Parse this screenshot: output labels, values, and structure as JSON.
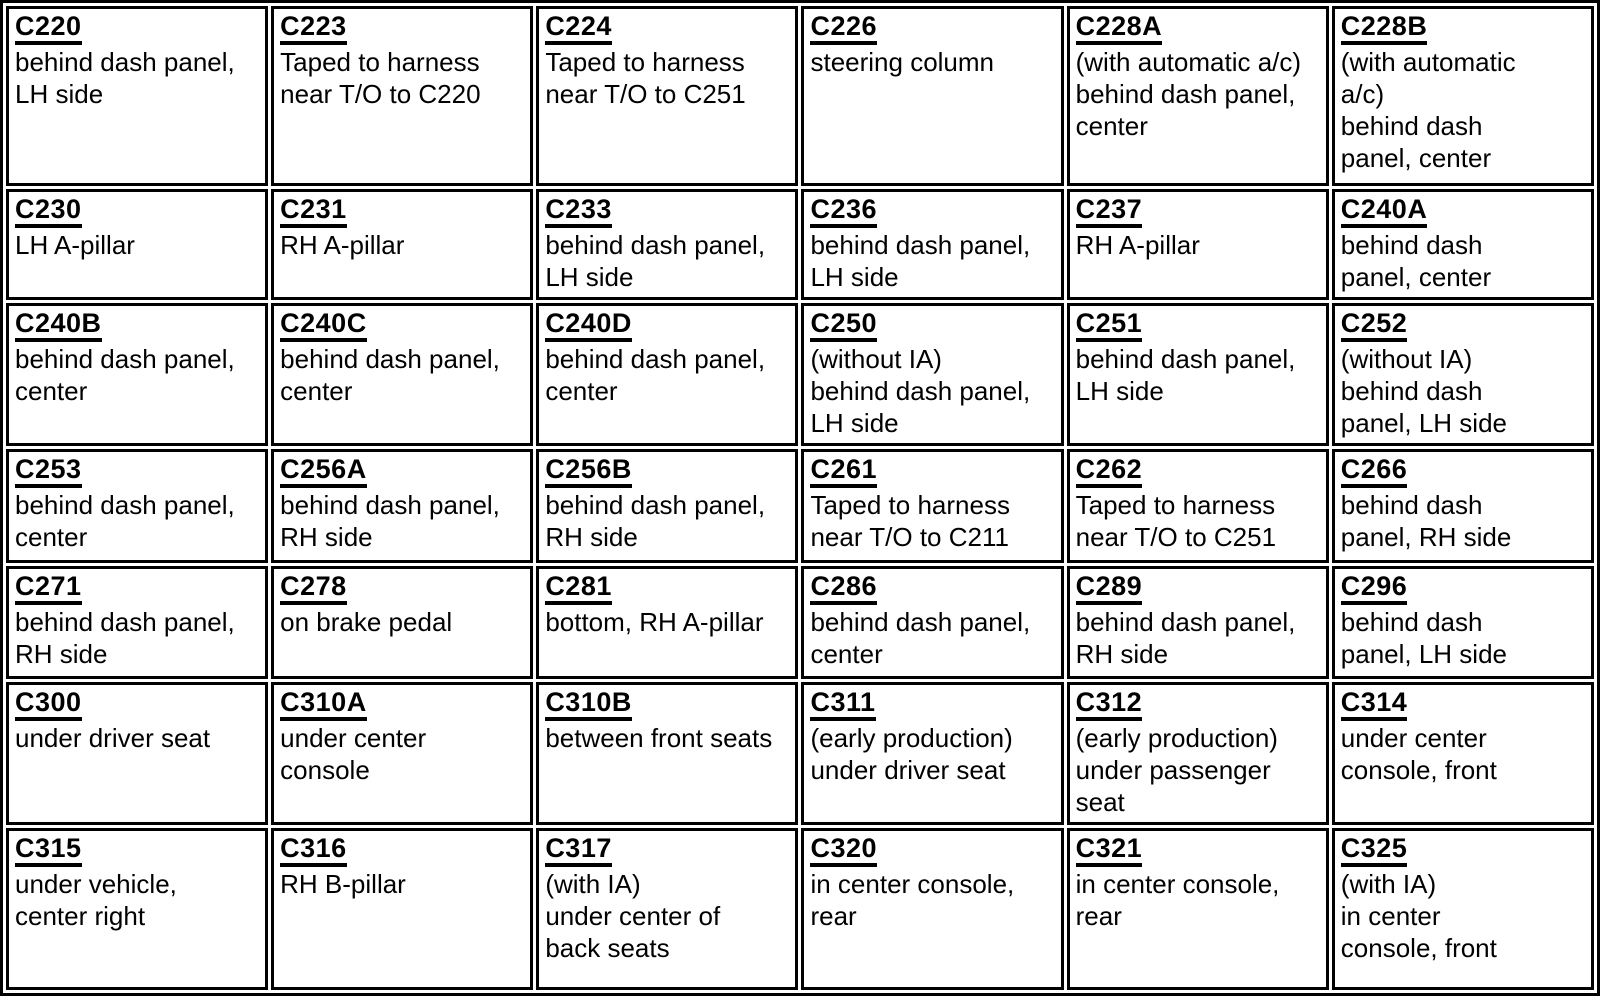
{
  "colors": {
    "text": "#000000",
    "border": "#000000",
    "background": "#ffffff"
  },
  "table": {
    "description": "connector-location-table",
    "columns": 6,
    "rows": [
      [
        {
          "code": "C220",
          "location": [
            "behind dash panel,",
            "LH side"
          ]
        },
        {
          "code": "C223",
          "location": [
            "Taped to harness",
            "near T/O to C220"
          ]
        },
        {
          "code": "C224",
          "location": [
            "Taped to harness",
            "near T/O to C251"
          ]
        },
        {
          "code": "C226",
          "location": [
            "steering column"
          ]
        },
        {
          "code": "C228A",
          "location": [
            "(with automatic a/c)",
            "behind dash panel,",
            "center"
          ]
        },
        {
          "code": "C228B",
          "location": [
            "(with automatic",
            "a/c)",
            "behind dash",
            "panel, center"
          ]
        }
      ],
      [
        {
          "code": "C230",
          "location": [
            "LH A-pillar"
          ]
        },
        {
          "code": "C231",
          "location": [
            "RH A-pillar"
          ]
        },
        {
          "code": "C233",
          "location": [
            "behind dash panel,",
            "LH side"
          ]
        },
        {
          "code": "C236",
          "location": [
            "behind dash panel,",
            "LH side"
          ]
        },
        {
          "code": "C237",
          "location": [
            "RH A-pillar"
          ]
        },
        {
          "code": "C240A",
          "location": [
            "behind dash",
            "panel, center"
          ]
        }
      ],
      [
        {
          "code": "C240B",
          "location": [
            "behind dash panel,",
            "center"
          ]
        },
        {
          "code": "C240C",
          "location": [
            "behind dash panel,",
            "center"
          ]
        },
        {
          "code": "C240D",
          "location": [
            "behind dash panel,",
            "center"
          ]
        },
        {
          "code": "C250",
          "location": [
            "(without IA)",
            "behind dash panel,",
            "LH side"
          ]
        },
        {
          "code": "C251",
          "location": [
            "behind dash panel,",
            "LH side"
          ]
        },
        {
          "code": "C252",
          "location": [
            "(without IA)",
            "behind dash",
            "panel, LH side"
          ]
        }
      ],
      [
        {
          "code": "C253",
          "location": [
            "behind dash panel,",
            "center"
          ]
        },
        {
          "code": "C256A",
          "location": [
            "behind dash panel,",
            "RH side"
          ]
        },
        {
          "code": "C256B",
          "location": [
            "behind dash panel,",
            "RH side"
          ]
        },
        {
          "code": "C261",
          "location": [
            "Taped to harness",
            "near T/O to C211"
          ]
        },
        {
          "code": "C262",
          "location": [
            "Taped to harness",
            "near T/O to C251"
          ]
        },
        {
          "code": "C266",
          "location": [
            "behind dash",
            "panel, RH side"
          ]
        }
      ],
      [
        {
          "code": "C271",
          "location": [
            "behind dash panel,",
            "RH side"
          ]
        },
        {
          "code": "C278",
          "location": [
            "on brake pedal"
          ]
        },
        {
          "code": "C281",
          "location": [
            "bottom, RH A-pillar"
          ]
        },
        {
          "code": "C286",
          "location": [
            "behind dash panel,",
            "center"
          ]
        },
        {
          "code": "C289",
          "location": [
            "behind dash panel,",
            "RH side"
          ]
        },
        {
          "code": "C296",
          "location": [
            "behind dash",
            "panel, LH side"
          ]
        }
      ],
      [
        {
          "code": "C300",
          "location": [
            "under driver seat"
          ]
        },
        {
          "code": "C310A",
          "location": [
            "under center",
            "console"
          ]
        },
        {
          "code": "C310B",
          "location": [
            "between front seats"
          ]
        },
        {
          "code": "C311",
          "location": [
            "(early production)",
            "under driver seat"
          ]
        },
        {
          "code": "C312",
          "location": [
            "(early production)",
            "under passenger",
            "seat"
          ]
        },
        {
          "code": "C314",
          "location": [
            "under center",
            "console, front"
          ]
        }
      ],
      [
        {
          "code": "C315",
          "location": [
            "under vehicle,",
            "center right"
          ]
        },
        {
          "code": "C316",
          "location": [
            "RH B-pillar"
          ]
        },
        {
          "code": "C317",
          "location": [
            "(with IA)",
            "under center of",
            "back seats"
          ]
        },
        {
          "code": "C320",
          "location": [
            "in center console,",
            "rear"
          ]
        },
        {
          "code": "C321",
          "location": [
            "in center console,",
            "rear"
          ]
        },
        {
          "code": "C325",
          "location": [
            "(with IA)",
            "in center",
            "console, front"
          ]
        }
      ]
    ]
  }
}
